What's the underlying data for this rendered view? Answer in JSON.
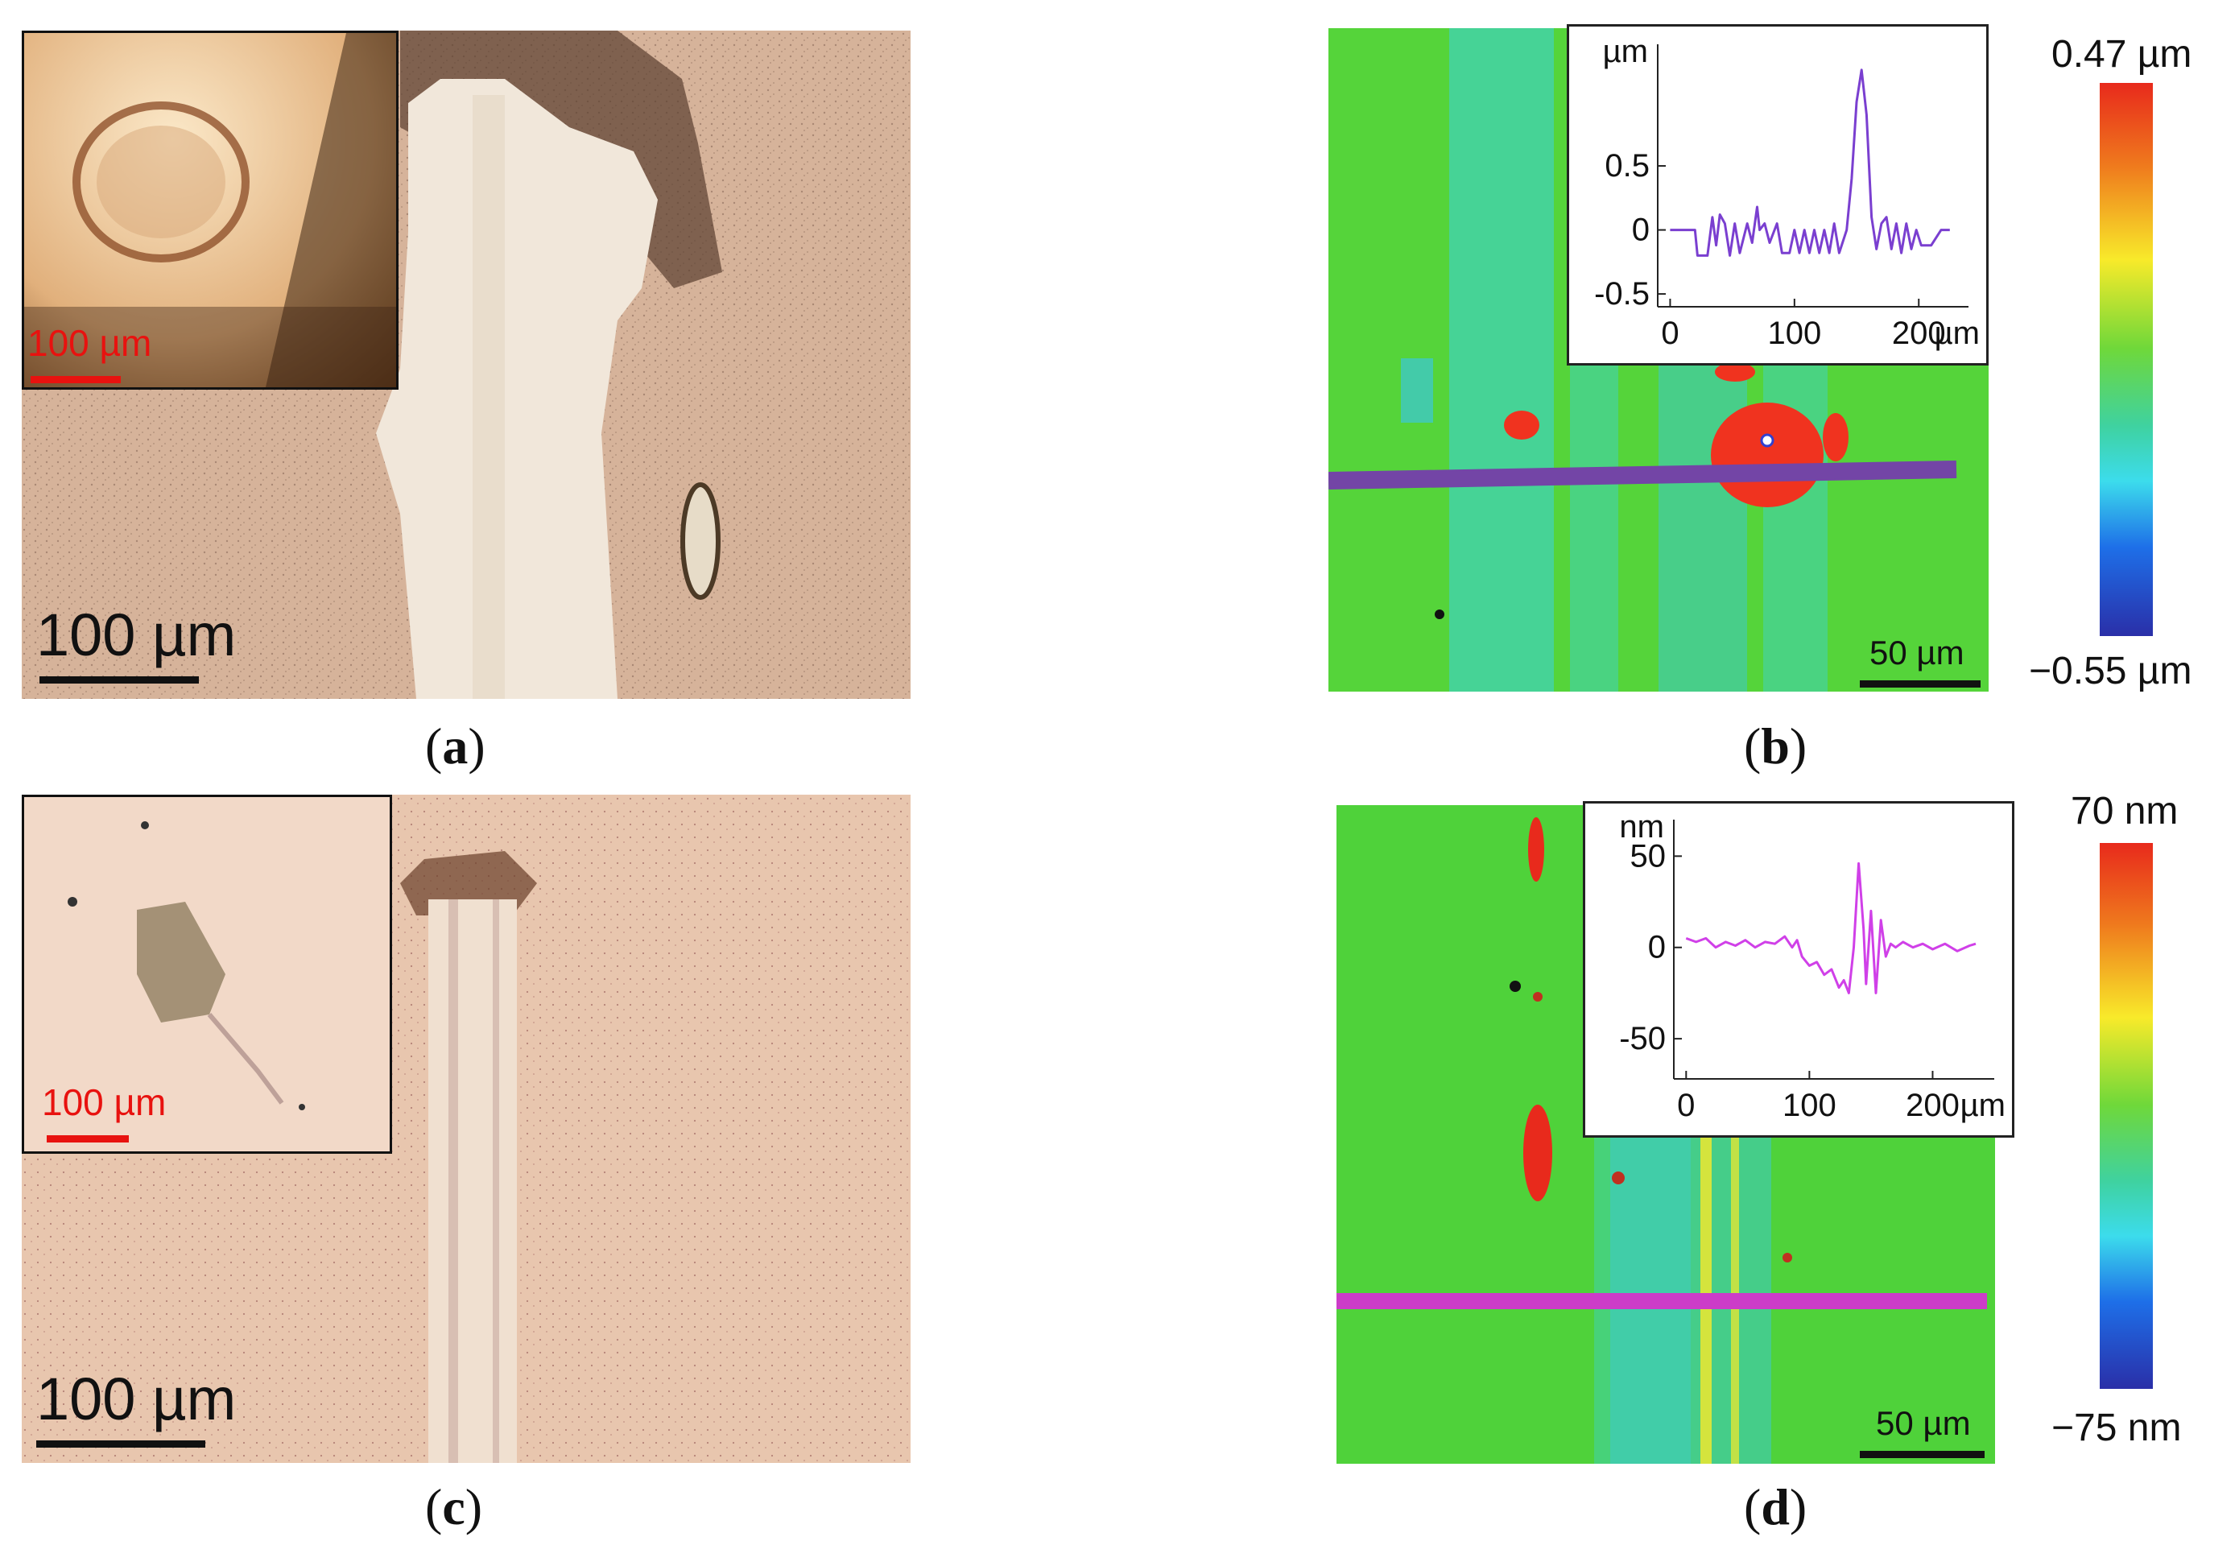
{
  "panels": {
    "a": {
      "caption": "a",
      "scalebar_label": "100 µm",
      "inset_scalebar_label": "100 µm"
    },
    "b": {
      "caption": "b",
      "scalebar_label": "50 µm",
      "colorbar_max": "0.47 µm",
      "colorbar_min": "−0.55 µm"
    },
    "c": {
      "caption": "c",
      "scalebar_label": "100 µm",
      "inset_scalebar_label": "100 µm"
    },
    "d": {
      "caption": "d",
      "scalebar_label": "50 µm",
      "colorbar_max": "70 nm",
      "colorbar_min": "−75 nm"
    }
  },
  "chart_data": [
    {
      "type": "line",
      "panel": "b",
      "ylabel": "µm",
      "xunit": "µm",
      "xlim": [
        -10,
        240
      ],
      "ylim": [
        -0.6,
        1.45
      ],
      "yticks": [
        -0.5,
        0,
        0.5
      ],
      "ytick_labels": [
        "-0.5",
        "0",
        "0.5"
      ],
      "xticks": [
        0,
        100,
        200
      ],
      "xtick_labels": [
        "0",
        "100",
        "200"
      ],
      "color": "#7a3fd0",
      "x": [
        0,
        20,
        22,
        30,
        34,
        37,
        40,
        44,
        48,
        52,
        56,
        62,
        66,
        70,
        72,
        76,
        80,
        86,
        90,
        96,
        100,
        104,
        108,
        112,
        116,
        120,
        124,
        128,
        132,
        136,
        142,
        146,
        150,
        154,
        158,
        162,
        166,
        170,
        174,
        178,
        182,
        186,
        190,
        194,
        198,
        202,
        210,
        218,
        225
      ],
      "y": [
        0,
        0,
        -0.2,
        -0.2,
        0.1,
        -0.12,
        0.12,
        0.05,
        -0.2,
        0.05,
        -0.18,
        0.05,
        -0.1,
        0.18,
        0.0,
        0.05,
        -0.1,
        0.05,
        -0.18,
        -0.18,
        0.0,
        -0.18,
        0.0,
        -0.18,
        0.0,
        -0.18,
        0.0,
        -0.18,
        0.05,
        -0.18,
        0.0,
        0.4,
        1.0,
        1.25,
        0.9,
        0.1,
        -0.15,
        0.05,
        0.1,
        -0.15,
        0.05,
        -0.18,
        0.05,
        -0.15,
        0.0,
        -0.12,
        -0.12,
        0.0,
        0.0
      ]
    },
    {
      "type": "line",
      "panel": "d",
      "ylabel": "nm",
      "xunit": "µm",
      "xlim": [
        -10,
        250
      ],
      "ylim": [
        -72,
        70
      ],
      "yticks": [
        -50,
        0,
        50
      ],
      "ytick_labels": [
        "-50",
        "0",
        "50"
      ],
      "xticks": [
        0,
        100,
        200
      ],
      "xtick_labels": [
        "0",
        "100",
        "200"
      ],
      "color": "#d040e8",
      "x": [
        0,
        8,
        16,
        24,
        32,
        40,
        48,
        56,
        64,
        72,
        80,
        86,
        90,
        94,
        100,
        106,
        112,
        118,
        124,
        128,
        132,
        136,
        140,
        144,
        146,
        150,
        154,
        158,
        162,
        166,
        170,
        176,
        184,
        192,
        200,
        210,
        220,
        230,
        235
      ],
      "y": [
        5,
        3,
        5,
        0,
        3,
        1,
        4,
        0,
        3,
        2,
        6,
        0,
        4,
        -5,
        -10,
        -8,
        -15,
        -12,
        -22,
        -18,
        -25,
        0,
        46,
        10,
        -20,
        20,
        -25,
        15,
        -5,
        2,
        0,
        3,
        0,
        2,
        -1,
        2,
        -2,
        1,
        2
      ]
    }
  ]
}
